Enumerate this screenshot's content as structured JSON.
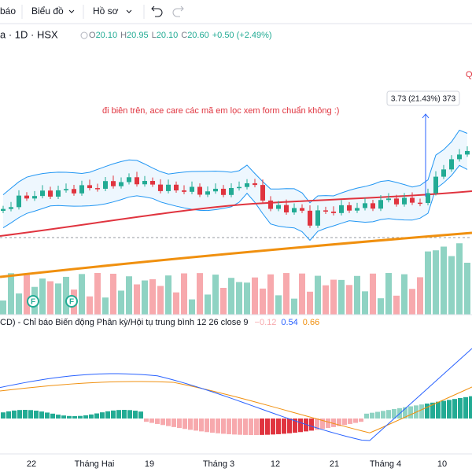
{
  "toolbar": {
    "items": [
      "báo",
      "Biểu đồ",
      "Hồ sơ"
    ]
  },
  "symbol": {
    "name": "a · 1D · HSX",
    "ohlc": [
      {
        "label": "O",
        "value": "20.10"
      },
      {
        "label": "H",
        "value": "20.95"
      },
      {
        "label": "L",
        "value": "20.10"
      },
      {
        "label": "C",
        "value": "20.60"
      }
    ],
    "change": "+0.50 (+2.49%)"
  },
  "annotation": "đi biên trên, ace care các mã em lọc xem form chuẩn không :)",
  "measure_label": "3.73 (21.43%) 373",
  "corner_label": "Q",
  "markers": [
    "F",
    "F"
  ],
  "macd": {
    "title": "CD) - Chỉ báo Biến động Phân kỳ/Hội tụ trung bình 12 26 close 9",
    "values": [
      "−0.12",
      "0.54",
      "0.66"
    ]
  },
  "x_axis": [
    "22",
    "Tháng Hai",
    "19",
    "Tháng 3",
    "12",
    "21",
    "Tháng 4",
    "10"
  ]
}
